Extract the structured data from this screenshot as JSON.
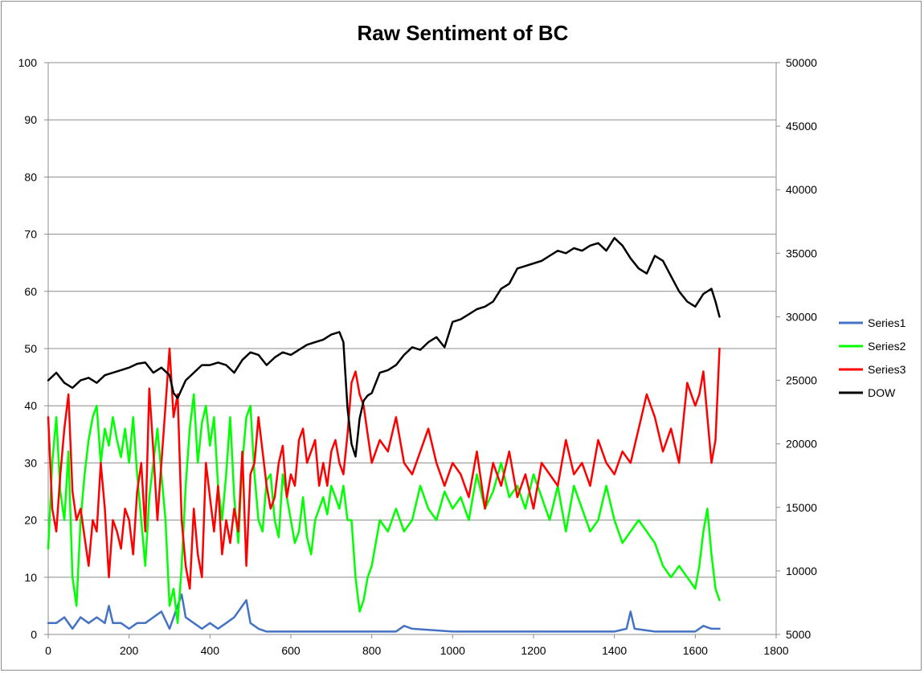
{
  "chart_data": {
    "type": "line",
    "title": "Raw Sentiment of BC",
    "xlabel": "",
    "ylabel": "",
    "xlim": [
      0,
      1800
    ],
    "ylim": [
      0,
      100
    ],
    "y2lim": [
      5000,
      50000
    ],
    "grid": "horizontal",
    "legend_position": "right",
    "x_ticks": [
      0,
      200,
      400,
      600,
      800,
      1000,
      1200,
      1400,
      1600,
      1800
    ],
    "y_ticks": [
      0,
      10,
      20,
      30,
      40,
      50,
      60,
      70,
      80,
      90,
      100
    ],
    "y2_ticks": [
      5000,
      10000,
      15000,
      20000,
      25000,
      30000,
      35000,
      40000,
      45000,
      50000
    ],
    "series": [
      {
        "name": "Series1",
        "color": "#4472c4",
        "axis": "left",
        "x": [
          0,
          20,
          40,
          60,
          80,
          100,
          120,
          140,
          150,
          160,
          180,
          200,
          220,
          240,
          260,
          280,
          300,
          320,
          330,
          340,
          360,
          380,
          400,
          420,
          440,
          460,
          480,
          490,
          500,
          520,
          540,
          560,
          600,
          700,
          800,
          860,
          880,
          900,
          1000,
          1100,
          1200,
          1300,
          1400,
          1430,
          1440,
          1450,
          1500,
          1550,
          1600,
          1620,
          1640,
          1660
        ],
        "y": [
          2,
          2,
          3,
          1,
          3,
          2,
          3,
          2,
          5,
          2,
          2,
          1,
          2,
          2,
          3,
          4,
          1,
          5,
          7,
          3,
          2,
          1,
          2,
          1,
          2,
          3,
          5,
          6,
          2,
          1,
          0.5,
          0.5,
          0.5,
          0.5,
          0.5,
          0.5,
          1.5,
          1,
          0.5,
          0.5,
          0.5,
          0.5,
          0.5,
          1,
          4,
          1,
          0.5,
          0.5,
          0.5,
          1.5,
          1,
          1
        ]
      },
      {
        "name": "Series2",
        "color": "#00ff00",
        "axis": "left",
        "x": [
          0,
          10,
          20,
          30,
          40,
          50,
          60,
          70,
          80,
          90,
          100,
          110,
          120,
          130,
          140,
          150,
          160,
          170,
          180,
          190,
          200,
          210,
          220,
          230,
          240,
          250,
          260,
          270,
          280,
          290,
          300,
          310,
          320,
          330,
          340,
          350,
          360,
          370,
          380,
          390,
          400,
          410,
          420,
          430,
          440,
          450,
          460,
          470,
          480,
          490,
          500,
          510,
          520,
          530,
          540,
          550,
          560,
          570,
          580,
          590,
          600,
          610,
          620,
          630,
          640,
          650,
          660,
          670,
          680,
          690,
          700,
          710,
          720,
          730,
          740,
          750,
          760,
          770,
          780,
          790,
          800,
          820,
          840,
          860,
          880,
          900,
          920,
          940,
          960,
          980,
          1000,
          1020,
          1040,
          1060,
          1080,
          1100,
          1120,
          1140,
          1160,
          1180,
          1200,
          1220,
          1240,
          1260,
          1280,
          1300,
          1320,
          1340,
          1360,
          1380,
          1400,
          1420,
          1440,
          1460,
          1480,
          1500,
          1520,
          1540,
          1560,
          1580,
          1600,
          1610,
          1620,
          1630,
          1640,
          1650,
          1660
        ],
        "y": [
          15,
          30,
          38,
          25,
          20,
          32,
          10,
          5,
          20,
          28,
          34,
          38,
          40,
          30,
          36,
          33,
          38,
          34,
          31,
          36,
          30,
          38,
          28,
          20,
          12,
          24,
          30,
          36,
          28,
          20,
          5,
          8,
          2,
          12,
          26,
          36,
          42,
          30,
          37,
          40,
          33,
          38,
          26,
          20,
          28,
          38,
          24,
          16,
          30,
          38,
          40,
          28,
          20,
          18,
          27,
          28,
          20,
          17,
          28,
          24,
          20,
          16,
          18,
          24,
          17,
          14,
          20,
          22,
          24,
          21,
          26,
          24,
          22,
          26,
          20,
          20,
          10,
          4,
          6,
          10,
          12,
          20,
          18,
          22,
          18,
          20,
          26,
          22,
          20,
          25,
          22,
          24,
          20,
          28,
          22,
          25,
          30,
          24,
          26,
          22,
          28,
          24,
          20,
          26,
          18,
          26,
          22,
          18,
          20,
          26,
          20,
          16,
          18,
          20,
          18,
          16,
          12,
          10,
          12,
          10,
          8,
          12,
          18,
          22,
          14,
          8,
          6
        ]
      },
      {
        "name": "Series3",
        "color": "#ff0000",
        "axis": "left",
        "x": [
          0,
          10,
          20,
          30,
          40,
          50,
          60,
          70,
          80,
          90,
          100,
          110,
          120,
          130,
          140,
          150,
          160,
          170,
          180,
          190,
          200,
          210,
          220,
          230,
          240,
          250,
          260,
          270,
          280,
          290,
          300,
          310,
          320,
          330,
          340,
          350,
          360,
          370,
          380,
          390,
          400,
          410,
          420,
          430,
          440,
          450,
          460,
          470,
          480,
          490,
          500,
          510,
          520,
          530,
          540,
          550,
          560,
          570,
          580,
          590,
          600,
          610,
          620,
          630,
          640,
          650,
          660,
          670,
          680,
          690,
          700,
          710,
          720,
          730,
          740,
          750,
          760,
          770,
          780,
          790,
          800,
          820,
          840,
          860,
          880,
          900,
          920,
          940,
          960,
          980,
          1000,
          1020,
          1040,
          1060,
          1080,
          1100,
          1120,
          1140,
          1160,
          1180,
          1200,
          1220,
          1240,
          1260,
          1280,
          1300,
          1320,
          1340,
          1360,
          1380,
          1400,
          1420,
          1440,
          1460,
          1480,
          1500,
          1520,
          1540,
          1560,
          1580,
          1600,
          1610,
          1620,
          1630,
          1640,
          1650,
          1660
        ],
        "y": [
          38,
          22,
          18,
          28,
          36,
          42,
          25,
          20,
          22,
          17,
          12,
          20,
          18,
          30,
          22,
          10,
          20,
          18,
          15,
          22,
          20,
          14,
          25,
          30,
          18,
          43,
          32,
          20,
          30,
          40,
          50,
          38,
          42,
          20,
          12,
          8,
          22,
          14,
          10,
          30,
          24,
          18,
          26,
          14,
          20,
          16,
          22,
          18,
          32,
          12,
          28,
          30,
          38,
          32,
          26,
          22,
          24,
          30,
          33,
          24,
          28,
          26,
          34,
          36,
          30,
          32,
          34,
          26,
          30,
          26,
          32,
          34,
          30,
          28,
          35,
          44,
          46,
          42,
          40,
          35,
          30,
          34,
          32,
          38,
          30,
          28,
          32,
          36,
          30,
          26,
          30,
          28,
          24,
          32,
          22,
          30,
          26,
          32,
          24,
          28,
          22,
          30,
          28,
          26,
          34,
          28,
          30,
          26,
          34,
          30,
          28,
          32,
          30,
          36,
          42,
          38,
          32,
          36,
          30,
          44,
          40,
          42,
          46,
          38,
          30,
          34,
          50
        ]
      },
      {
        "name": "DOW",
        "color": "#000000",
        "axis": "right",
        "x": [
          0,
          20,
          40,
          60,
          80,
          100,
          120,
          140,
          160,
          180,
          200,
          220,
          240,
          260,
          280,
          300,
          310,
          320,
          340,
          360,
          380,
          400,
          420,
          440,
          460,
          480,
          500,
          520,
          540,
          560,
          580,
          600,
          620,
          640,
          660,
          680,
          700,
          720,
          730,
          740,
          750,
          760,
          770,
          780,
          790,
          800,
          820,
          840,
          860,
          880,
          900,
          920,
          940,
          960,
          980,
          1000,
          1020,
          1040,
          1060,
          1080,
          1100,
          1120,
          1140,
          1160,
          1180,
          1200,
          1220,
          1240,
          1260,
          1280,
          1300,
          1320,
          1340,
          1360,
          1380,
          1400,
          1420,
          1440,
          1460,
          1480,
          1500,
          1520,
          1540,
          1560,
          1580,
          1600,
          1620,
          1640,
          1650,
          1660
        ],
        "y": [
          25000,
          25600,
          24800,
          24400,
          25000,
          25200,
          24800,
          25400,
          25600,
          25800,
          26000,
          26300,
          26400,
          25600,
          26000,
          25400,
          24000,
          23600,
          25000,
          25600,
          26200,
          26200,
          26400,
          26200,
          25600,
          26600,
          27200,
          27000,
          26200,
          26800,
          27200,
          27000,
          27400,
          27800,
          28000,
          28200,
          28600,
          28800,
          28000,
          22800,
          20000,
          19000,
          22000,
          23400,
          23800,
          24000,
          25600,
          25800,
          26200,
          27000,
          27600,
          27400,
          28000,
          28400,
          27600,
          29600,
          29800,
          30200,
          30600,
          30800,
          31200,
          32200,
          32600,
          33800,
          34000,
          34200,
          34400,
          34800,
          35200,
          35000,
          35400,
          35200,
          35600,
          35800,
          35200,
          36200,
          35600,
          34600,
          33800,
          33400,
          34800,
          34400,
          33200,
          32000,
          31200,
          30800,
          31800,
          32200,
          31200,
          30000
        ]
      }
    ]
  }
}
